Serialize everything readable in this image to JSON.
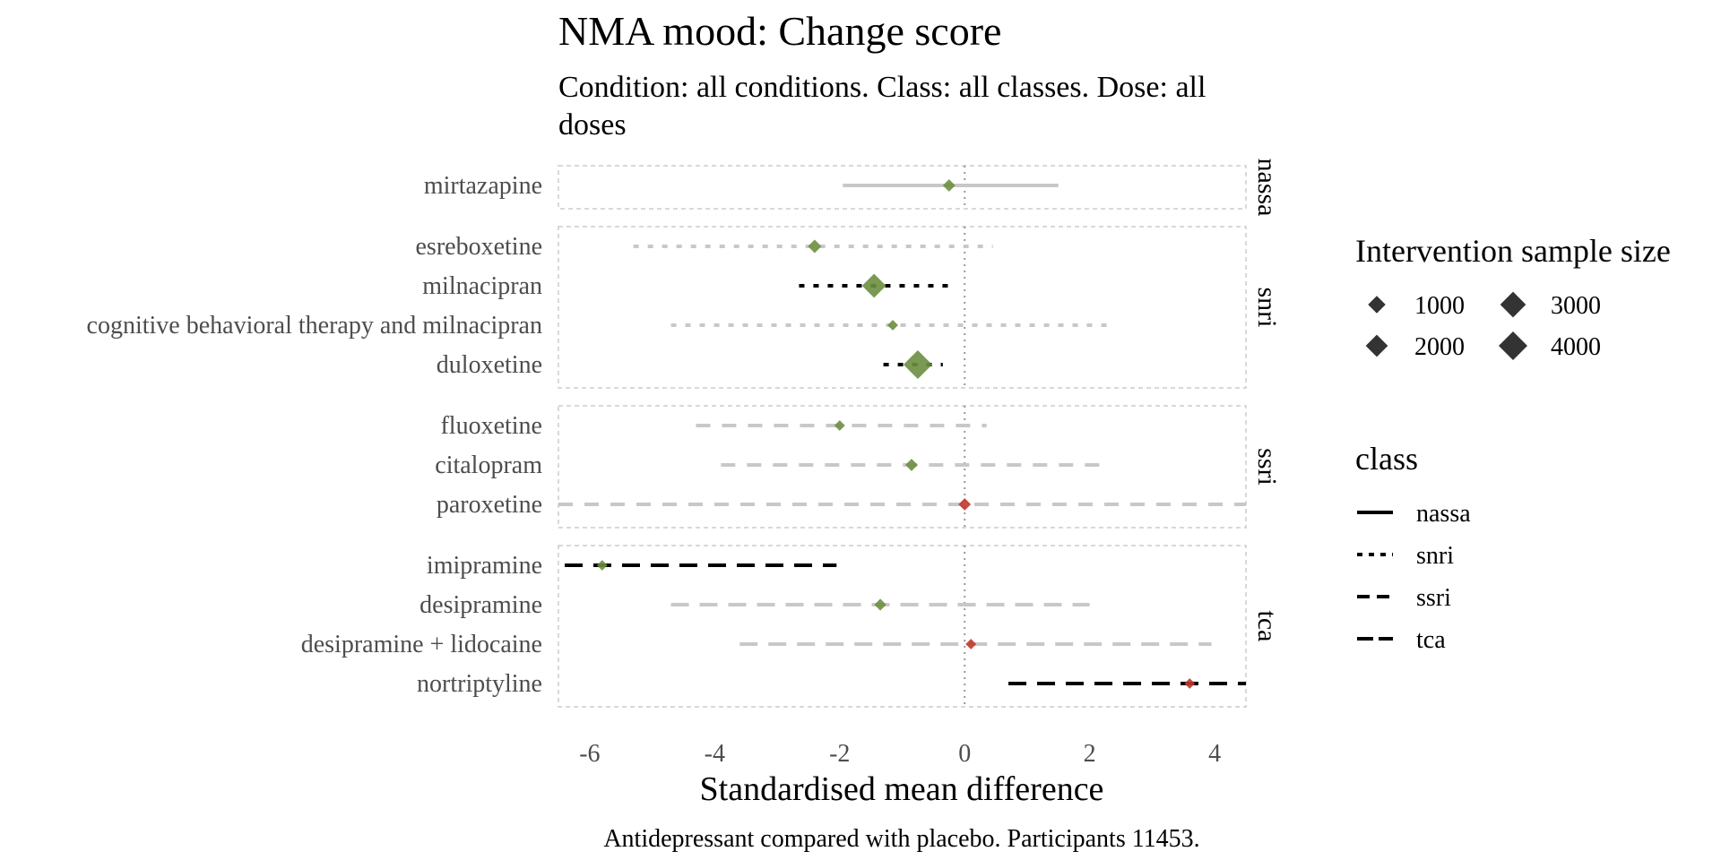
{
  "chart_data": {
    "type": "forest",
    "title": "NMA mood: Change score",
    "subtitle": "Condition: all conditions. Class: all classes. Dose: all doses",
    "xlabel": "Standardised mean difference",
    "caption": "Antidepressant compared with placebo. Participants 11453.",
    "xlim": [
      -6.5,
      4.5
    ],
    "xticks": [
      -6,
      -4,
      -2,
      0,
      2,
      4
    ],
    "xtick_labels": [
      "-6",
      "-4",
      "-2",
      "0",
      "2",
      "4"
    ],
    "reference_line": 0,
    "panels": [
      {
        "label": "nassa",
        "rows": [
          {
            "name": "mirtazapine",
            "est": -0.25,
            "lo": -1.95,
            "hi": 1.5,
            "size": 300,
            "significant": false,
            "color": "#6b8e3f"
          }
        ]
      },
      {
        "label": "snri",
        "rows": [
          {
            "name": "esreboxetine",
            "est": -2.4,
            "lo": -5.3,
            "hi": 0.45,
            "size": 400,
            "significant": false,
            "color": "#6b8e3f"
          },
          {
            "name": "milnacipran",
            "est": -1.45,
            "lo": -2.65,
            "hi": -0.15,
            "size": 2500,
            "significant": true,
            "color": "#6b8e3f"
          },
          {
            "name": "cognitive behavioral therapy and milnacipran",
            "est": -1.15,
            "lo": -4.7,
            "hi": 2.3,
            "size": 150,
            "significant": false,
            "color": "#6b8e3f"
          },
          {
            "name": "duloxetine",
            "est": -0.75,
            "lo": -1.3,
            "hi": -0.35,
            "size": 4000,
            "significant": true,
            "color": "#6b8e3f"
          }
        ]
      },
      {
        "label": "ssri",
        "rows": [
          {
            "name": "fluoxetine",
            "est": -2.0,
            "lo": -4.3,
            "hi": 0.35,
            "size": 150,
            "significant": false,
            "color": "#6b8e3f"
          },
          {
            "name": "citalopram",
            "est": -0.85,
            "lo": -3.9,
            "hi": 2.3,
            "size": 300,
            "significant": false,
            "color": "#6b8e3f"
          },
          {
            "name": "paroxetine",
            "est": 0.0,
            "lo": -6.5,
            "hi": 4.5,
            "size": 300,
            "significant": false,
            "color": "#c0392b"
          }
        ]
      },
      {
        "label": "tca",
        "rows": [
          {
            "name": "imipramine",
            "est": -5.8,
            "lo": -6.4,
            "hi": -2.05,
            "size": 150,
            "significant": true,
            "color": "#6b8e3f"
          },
          {
            "name": "desipramine",
            "est": -1.35,
            "lo": -4.7,
            "hi": 2.0,
            "size": 250,
            "significant": false,
            "color": "#6b8e3f"
          },
          {
            "name": "desipramine + lidocaine",
            "est": 0.1,
            "lo": -3.6,
            "hi": 3.95,
            "size": 150,
            "significant": false,
            "color": "#c0392b"
          },
          {
            "name": "nortriptyline",
            "est": 3.6,
            "lo": 0.7,
            "hi": 4.5,
            "size": 150,
            "significant": true,
            "color": "#c0392b"
          }
        ]
      }
    ],
    "legend_size": {
      "title": "Intervention sample size",
      "entries": [
        {
          "label": "1000",
          "value": 1000
        },
        {
          "label": "2000",
          "value": 2000
        },
        {
          "label": "3000",
          "value": 3000
        },
        {
          "label": "4000",
          "value": 4000
        }
      ]
    },
    "legend_class": {
      "title": "class",
      "entries": [
        {
          "label": "nassa",
          "dash": "solid"
        },
        {
          "label": "snri",
          "dash": "dotted"
        },
        {
          "label": "ssri",
          "dash": "dashed"
        },
        {
          "label": "tca",
          "dash": "longdash"
        }
      ]
    },
    "colors": {
      "significant_line": "#000000",
      "nonsignificant_line": "#c8c8c8",
      "favourable_point": "#6b8e3f",
      "unfavourable_point": "#c0392b",
      "panel_border": "#cccccc"
    }
  }
}
